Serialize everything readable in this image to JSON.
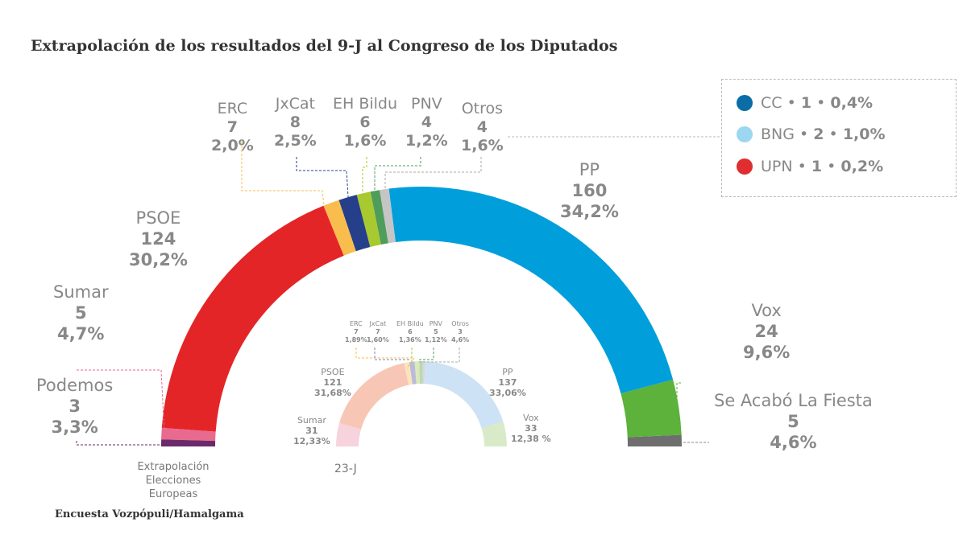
{
  "title": "Extrapolación de los resultados del 9-J al Congreso de los Diputados",
  "source": "Encuesta Vozpópuli/Hamalgama",
  "outer_caption": "Extrapolación Elecciones Europeas",
  "inner_caption": "23-J",
  "chart_data": [
    {
      "type": "pie",
      "subtype": "hemicycle",
      "name": "Extrapolación Elecciones Europeas",
      "total_seats": 350,
      "parties": [
        {
          "name": "Podemos",
          "seats": 3,
          "pct": "3,3%",
          "color": "#6b2a6b"
        },
        {
          "name": "Sumar",
          "seats": 5,
          "pct": "4,7%",
          "color": "#e86a8e"
        },
        {
          "name": "PSOE",
          "seats": 124,
          "pct": "30,2%",
          "color": "#e42527"
        },
        {
          "name": "ERC",
          "seats": 7,
          "pct": "2,0%",
          "color": "#f9bd4d"
        },
        {
          "name": "JxCat",
          "seats": 8,
          "pct": "2,5%",
          "color": "#263f8a"
        },
        {
          "name": "EH Bildu",
          "seats": 6,
          "pct": "1,6%",
          "color": "#a8c92f"
        },
        {
          "name": "PNV",
          "seats": 4,
          "pct": "1,2%",
          "color": "#4f9d5a"
        },
        {
          "name": "Otros",
          "seats": 4,
          "pct": "1,6%",
          "color": "#c5c5c5"
        },
        {
          "name": "PP",
          "seats": 160,
          "pct": "34,2%",
          "color": "#009fdb"
        },
        {
          "name": "Vox",
          "seats": 24,
          "pct": "9,6%",
          "color": "#5cb23a"
        },
        {
          "name": "Se Acabó La Fiesta",
          "seats": 5,
          "pct": "4,6%",
          "color": "#6e6e6e"
        }
      ],
      "legend": [
        {
          "name": "CC",
          "seats": 1,
          "pct": "0,4%",
          "color": "#0b6da6"
        },
        {
          "name": "BNG",
          "seats": 2,
          "pct": "1,0%",
          "color": "#9cd6f1"
        },
        {
          "name": "UPN",
          "seats": 1,
          "pct": "0,2%",
          "color": "#e02d2f"
        }
      ]
    },
    {
      "type": "pie",
      "subtype": "hemicycle",
      "name": "23-J",
      "total_seats": 350,
      "parties": [
        {
          "name": "Sumar",
          "seats": 31,
          "pct": "12,33%",
          "color": "#f6d3dd"
        },
        {
          "name": "PSOE",
          "seats": 121,
          "pct": "31,68%",
          "color": "#f8c6b5"
        },
        {
          "name": "ERC",
          "seats": 7,
          "pct": "1,89%",
          "color": "#fbe3bd"
        },
        {
          "name": "JxCat",
          "seats": 7,
          "pct": "1,60%",
          "color": "#b9bcd9"
        },
        {
          "name": "EH Bildu",
          "seats": 6,
          "pct": "1,36%",
          "color": "#dde9b8"
        },
        {
          "name": "PNV",
          "seats": 5,
          "pct": "1,12%",
          "color": "#b9d8b8"
        },
        {
          "name": "Otros",
          "seats": 3,
          "pct": "4,6%",
          "color": "#d8d8d8"
        },
        {
          "name": "PP",
          "seats": 137,
          "pct": "33,06%",
          "color": "#cde2f4"
        },
        {
          "name": "Vox",
          "seats": 33,
          "pct": "12,38 %",
          "color": "#d9eac9"
        }
      ]
    }
  ]
}
